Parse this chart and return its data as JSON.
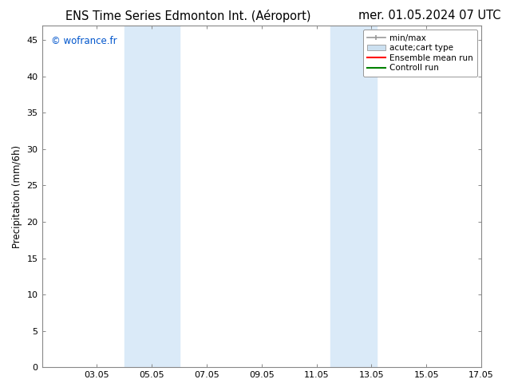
{
  "title_left": "ENS Time Series Edmonton Int. (Aéroport)",
  "title_right": "mer. 01.05.2024 07 UTC",
  "ylabel": "Precipitation (mm/6h)",
  "ylim": [
    0,
    47
  ],
  "yticks": [
    0,
    5,
    10,
    15,
    20,
    25,
    30,
    35,
    40,
    45
  ],
  "xlim": [
    1,
    17
  ],
  "xtick_labels": [
    "03.05",
    "05.05",
    "07.05",
    "09.05",
    "11.05",
    "13.05",
    "15.05",
    "17.05"
  ],
  "xtick_positions": [
    3,
    5,
    7,
    9,
    11,
    13,
    15,
    17
  ],
  "shaded_bands": [
    {
      "xmin": 4.0,
      "xmax": 6.0
    },
    {
      "xmin": 11.5,
      "xmax": 13.2
    }
  ],
  "shade_color": "#daeaf8",
  "background_color": "#ffffff",
  "watermark_text": "© wofrance.fr",
  "watermark_color": "#0055cc",
  "spine_color": "#888888",
  "tick_color": "#888888",
  "title_fontsize": 10.5,
  "axis_label_fontsize": 8.5,
  "tick_fontsize": 8,
  "legend_fontsize": 7.5,
  "minmax_color": "#999999",
  "band_color": "#cce0f0",
  "ensemble_color": "#ff0000",
  "control_color": "#008000"
}
